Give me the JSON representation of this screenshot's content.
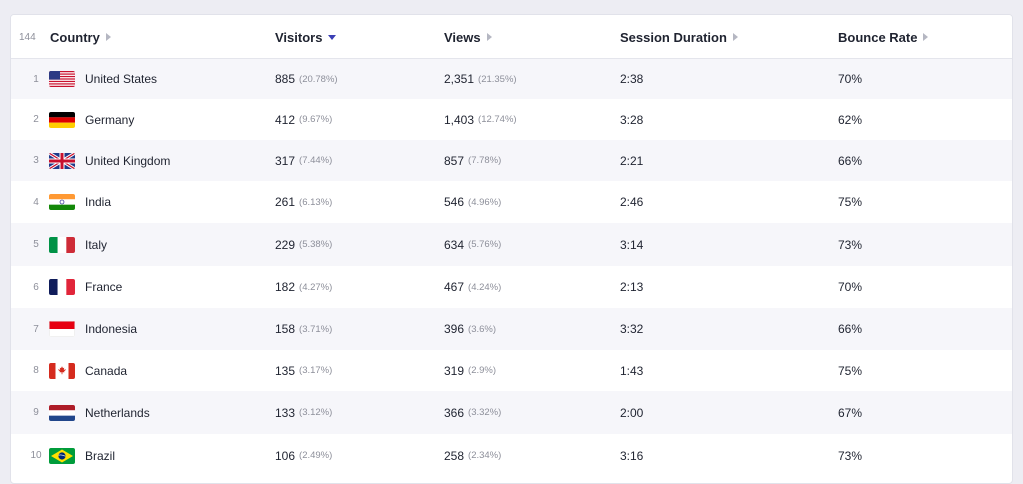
{
  "table": {
    "total_count": "144",
    "columns": {
      "country": "Country",
      "visitors": "Visitors",
      "views": "Views",
      "session": "Session Duration",
      "bounce": "Bounce Rate"
    },
    "rows": [
      {
        "rank": "1",
        "country": "United States",
        "flag": "us-flag-icon",
        "visitors": "885",
        "visitors_pct": "(20.78%)",
        "views": "2,351",
        "views_pct": "(21.35%)",
        "session": "2:38",
        "bounce": "70%"
      },
      {
        "rank": "2",
        "country": "Germany",
        "flag": "de-flag-icon",
        "visitors": "412",
        "visitors_pct": "(9.67%)",
        "views": "1,403",
        "views_pct": "(12.74%)",
        "session": "3:28",
        "bounce": "62%"
      },
      {
        "rank": "3",
        "country": "United Kingdom",
        "flag": "gb-flag-icon",
        "visitors": "317",
        "visitors_pct": "(7.44%)",
        "views": "857",
        "views_pct": "(7.78%)",
        "session": "2:21",
        "bounce": "66%"
      },
      {
        "rank": "4",
        "country": "India",
        "flag": "in-flag-icon",
        "visitors": "261",
        "visitors_pct": "(6.13%)",
        "views": "546",
        "views_pct": "(4.96%)",
        "session": "2:46",
        "bounce": "75%"
      },
      {
        "rank": "5",
        "country": "Italy",
        "flag": "it-flag-icon",
        "visitors": "229",
        "visitors_pct": "(5.38%)",
        "views": "634",
        "views_pct": "(5.76%)",
        "session": "3:14",
        "bounce": "73%"
      },
      {
        "rank": "6",
        "country": "France",
        "flag": "fr-flag-icon",
        "visitors": "182",
        "visitors_pct": "(4.27%)",
        "views": "467",
        "views_pct": "(4.24%)",
        "session": "2:13",
        "bounce": "70%"
      },
      {
        "rank": "7",
        "country": "Indonesia",
        "flag": "id-flag-icon",
        "visitors": "158",
        "visitors_pct": "(3.71%)",
        "views": "396",
        "views_pct": "(3.6%)",
        "session": "3:32",
        "bounce": "66%"
      },
      {
        "rank": "8",
        "country": "Canada",
        "flag": "ca-flag-icon",
        "visitors": "135",
        "visitors_pct": "(3.17%)",
        "views": "319",
        "views_pct": "(2.9%)",
        "session": "1:43",
        "bounce": "75%"
      },
      {
        "rank": "9",
        "country": "Netherlands",
        "flag": "nl-flag-icon",
        "visitors": "133",
        "visitors_pct": "(3.12%)",
        "views": "366",
        "views_pct": "(3.32%)",
        "session": "2:00",
        "bounce": "67%"
      },
      {
        "rank": "10",
        "country": "Brazil",
        "flag": "br-flag-icon",
        "visitors": "106",
        "visitors_pct": "(2.49%)",
        "views": "258",
        "views_pct": "(2.34%)",
        "session": "3:16",
        "bounce": "73%"
      }
    ]
  }
}
